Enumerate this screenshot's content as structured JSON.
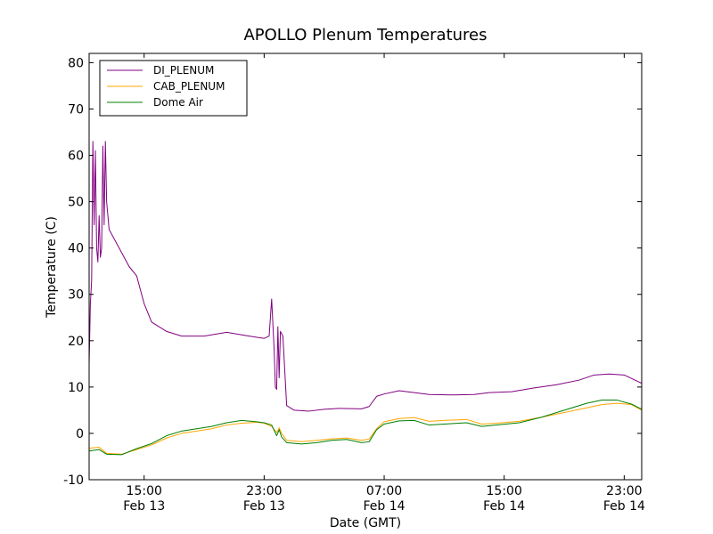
{
  "chart_data": {
    "type": "line",
    "title": "APOLLO Plenum Temperatures",
    "xlabel": "Date (GMT)",
    "ylabel": "Temperature (C)",
    "ylim": [
      -10,
      82
    ],
    "xlim": [
      "2013-02-13 11:20",
      "2013-02-15 00:10"
    ],
    "grid": false,
    "legend_position": "top-left",
    "x_ticks": [
      {
        "x": "2013-02-13 15:00",
        "time": "15:00",
        "date": "Feb 13"
      },
      {
        "x": "2013-02-13 23:00",
        "time": "23:00",
        "date": "Feb 13"
      },
      {
        "x": "2013-02-14 07:00",
        "time": "07:00",
        "date": "Feb 14"
      },
      {
        "x": "2013-02-14 15:00",
        "time": "15:00",
        "date": "Feb 14"
      },
      {
        "x": "2013-02-14 23:00",
        "time": "23:00",
        "date": "Feb 14"
      }
    ],
    "y_ticks": [
      -10,
      0,
      10,
      20,
      30,
      40,
      50,
      60,
      70,
      80
    ],
    "series": [
      {
        "name": "DI_PLENUM",
        "color": "#800080",
        "points": [
          [
            "2013-02-13 11:20",
            15
          ],
          [
            "2013-02-13 11:25",
            28
          ],
          [
            "2013-02-13 11:30",
            33
          ],
          [
            "2013-02-13 11:35",
            63
          ],
          [
            "2013-02-13 11:40",
            45
          ],
          [
            "2013-02-13 11:45",
            61
          ],
          [
            "2013-02-13 11:50",
            40
          ],
          [
            "2013-02-13 11:55",
            37
          ],
          [
            "2013-02-13 12:00",
            47
          ],
          [
            "2013-02-13 12:05",
            38
          ],
          [
            "2013-02-13 12:10",
            40
          ],
          [
            "2013-02-13 12:15",
            62
          ],
          [
            "2013-02-13 12:20",
            45
          ],
          [
            "2013-02-13 12:25",
            63
          ],
          [
            "2013-02-13 12:30",
            50
          ],
          [
            "2013-02-13 12:40",
            44
          ],
          [
            "2013-02-13 13:00",
            42
          ],
          [
            "2013-02-13 13:30",
            39
          ],
          [
            "2013-02-13 14:00",
            36
          ],
          [
            "2013-02-13 14:30",
            34
          ],
          [
            "2013-02-13 15:00",
            28
          ],
          [
            "2013-02-13 15:30",
            24
          ],
          [
            "2013-02-13 16:30",
            22
          ],
          [
            "2013-02-13 17:30",
            21
          ],
          [
            "2013-02-13 19:00",
            21
          ],
          [
            "2013-02-13 20:30",
            21.8
          ],
          [
            "2013-02-13 22:00",
            21
          ],
          [
            "2013-02-13 23:00",
            20.5
          ],
          [
            "2013-02-13 23:20",
            21
          ],
          [
            "2013-02-13 23:30",
            29
          ],
          [
            "2013-02-13 23:40",
            18
          ],
          [
            "2013-02-13 23:45",
            10
          ],
          [
            "2013-02-13 23:50",
            9.5
          ],
          [
            "2013-02-13 23:55",
            23
          ],
          [
            "2013-02-14 00:00",
            12
          ],
          [
            "2013-02-14 00:05",
            22
          ],
          [
            "2013-02-14 00:15",
            21
          ],
          [
            "2013-02-14 00:30",
            6
          ],
          [
            "2013-02-14 01:00",
            5
          ],
          [
            "2013-02-14 02:00",
            4.8
          ],
          [
            "2013-02-14 03:00",
            5.2
          ],
          [
            "2013-02-14 04:00",
            5.4
          ],
          [
            "2013-02-14 05:30",
            5.3
          ],
          [
            "2013-02-14 06:00",
            5.8
          ],
          [
            "2013-02-14 06:30",
            8
          ],
          [
            "2013-02-14 07:00",
            8.5
          ],
          [
            "2013-02-14 08:00",
            9.2
          ],
          [
            "2013-02-14 09:00",
            8.8
          ],
          [
            "2013-02-14 10:00",
            8.4
          ],
          [
            "2013-02-14 11:30",
            8.3
          ],
          [
            "2013-02-14 13:00",
            8.4
          ],
          [
            "2013-02-14 14:00",
            8.8
          ],
          [
            "2013-02-14 15:30",
            9
          ],
          [
            "2013-02-14 17:00",
            9.8
          ],
          [
            "2013-02-14 18:30",
            10.5
          ],
          [
            "2013-02-14 20:00",
            11.5
          ],
          [
            "2013-02-14 21:00",
            12.6
          ],
          [
            "2013-02-14 22:00",
            12.8
          ],
          [
            "2013-02-14 23:00",
            12.6
          ],
          [
            "2013-02-15 00:10",
            10.8
          ]
        ]
      },
      {
        "name": "CAB_PLENUM",
        "color": "#ffa500",
        "points": [
          [
            "2013-02-13 11:20",
            -3.2
          ],
          [
            "2013-02-13 12:00",
            -3
          ],
          [
            "2013-02-13 12:30",
            -4.3
          ],
          [
            "2013-02-13 13:30",
            -4.5
          ],
          [
            "2013-02-13 14:30",
            -3.5
          ],
          [
            "2013-02-13 15:30",
            -2.5
          ],
          [
            "2013-02-13 16:30",
            -1
          ],
          [
            "2013-02-13 17:30",
            0
          ],
          [
            "2013-02-13 18:30",
            0.5
          ],
          [
            "2013-02-13 19:30",
            1
          ],
          [
            "2013-02-13 20:30",
            1.8
          ],
          [
            "2013-02-13 21:30",
            2.2
          ],
          [
            "2013-02-13 22:30",
            2.4
          ],
          [
            "2013-02-13 23:00",
            2.2
          ],
          [
            "2013-02-13 23:30",
            1.5
          ],
          [
            "2013-02-13 23:50",
            0.2
          ],
          [
            "2013-02-14 00:00",
            1.2
          ],
          [
            "2013-02-14 00:10",
            0
          ],
          [
            "2013-02-14 00:30",
            -1.5
          ],
          [
            "2013-02-14 01:30",
            -1.8
          ],
          [
            "2013-02-14 02:30",
            -1.5
          ],
          [
            "2013-02-14 03:30",
            -1.2
          ],
          [
            "2013-02-14 04:30",
            -1
          ],
          [
            "2013-02-14 05:30",
            -1.5
          ],
          [
            "2013-02-14 06:00",
            -1.2
          ],
          [
            "2013-02-14 06:30",
            1
          ],
          [
            "2013-02-14 07:00",
            2.5
          ],
          [
            "2013-02-14 08:00",
            3.2
          ],
          [
            "2013-02-14 09:00",
            3.4
          ],
          [
            "2013-02-14 10:00",
            2.6
          ],
          [
            "2013-02-14 11:00",
            2.8
          ],
          [
            "2013-02-14 12:30",
            3
          ],
          [
            "2013-02-14 13:30",
            2
          ],
          [
            "2013-02-14 14:30",
            2.2
          ],
          [
            "2013-02-14 16:00",
            2.6
          ],
          [
            "2013-02-14 17:30",
            3.5
          ],
          [
            "2013-02-14 19:00",
            4.5
          ],
          [
            "2013-02-14 20:30",
            5.5
          ],
          [
            "2013-02-14 21:30",
            6.2
          ],
          [
            "2013-02-14 22:30",
            6.5
          ],
          [
            "2013-02-14 23:30",
            6.2
          ],
          [
            "2013-02-15 00:10",
            5
          ]
        ]
      },
      {
        "name": "Dome Air",
        "color": "#008000",
        "points": [
          [
            "2013-02-13 11:20",
            -3.8
          ],
          [
            "2013-02-13 12:00",
            -3.5
          ],
          [
            "2013-02-13 12:30",
            -4.5
          ],
          [
            "2013-02-13 13:30",
            -4.6
          ],
          [
            "2013-02-13 14:30",
            -3.3
          ],
          [
            "2013-02-13 15:30",
            -2.2
          ],
          [
            "2013-02-13 16:30",
            -0.5
          ],
          [
            "2013-02-13 17:30",
            0.5
          ],
          [
            "2013-02-13 18:30",
            1
          ],
          [
            "2013-02-13 19:30",
            1.5
          ],
          [
            "2013-02-13 20:30",
            2.3
          ],
          [
            "2013-02-13 21:30",
            2.8
          ],
          [
            "2013-02-13 22:30",
            2.5
          ],
          [
            "2013-02-13 23:00",
            2.3
          ],
          [
            "2013-02-13 23:30",
            1.8
          ],
          [
            "2013-02-13 23:50",
            -0.5
          ],
          [
            "2013-02-14 00:00",
            0.8
          ],
          [
            "2013-02-14 00:10",
            -0.8
          ],
          [
            "2013-02-14 00:30",
            -2
          ],
          [
            "2013-02-14 01:30",
            -2.3
          ],
          [
            "2013-02-14 02:30",
            -2
          ],
          [
            "2013-02-14 03:30",
            -1.5
          ],
          [
            "2013-02-14 04:30",
            -1.3
          ],
          [
            "2013-02-14 05:30",
            -2
          ],
          [
            "2013-02-14 06:00",
            -1.8
          ],
          [
            "2013-02-14 06:30",
            0.8
          ],
          [
            "2013-02-14 07:00",
            2
          ],
          [
            "2013-02-14 08:00",
            2.7
          ],
          [
            "2013-02-14 09:00",
            2.8
          ],
          [
            "2013-02-14 10:00",
            1.8
          ],
          [
            "2013-02-14 11:00",
            2
          ],
          [
            "2013-02-14 12:30",
            2.3
          ],
          [
            "2013-02-14 13:30",
            1.5
          ],
          [
            "2013-02-14 14:30",
            1.8
          ],
          [
            "2013-02-14 16:00",
            2.3
          ],
          [
            "2013-02-14 17:30",
            3.5
          ],
          [
            "2013-02-14 19:00",
            5
          ],
          [
            "2013-02-14 20:30",
            6.5
          ],
          [
            "2013-02-14 21:30",
            7.2
          ],
          [
            "2013-02-14 22:30",
            7.2
          ],
          [
            "2013-02-14 23:30",
            6.3
          ],
          [
            "2013-02-15 00:10",
            5.2
          ]
        ]
      }
    ]
  }
}
